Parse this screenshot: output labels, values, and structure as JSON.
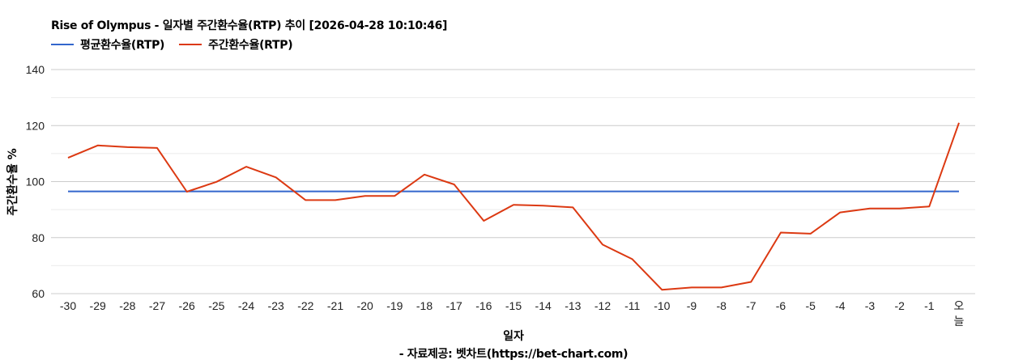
{
  "title": "Rise of Olympus - 일자별 주간환수율(RTP) 추이 [2026-04-28 10:10:46]",
  "legend": [
    {
      "label": "평균환수율(RTP)",
      "color": "#3366cc"
    },
    {
      "label": "주간환수율(RTP)",
      "color": "#dc3912"
    }
  ],
  "x_axis_title": "일자",
  "y_axis_title": "주간환수율 %",
  "source": "- 자료제공: 벳차트(https://bet-chart.com)",
  "chart_data": {
    "type": "line",
    "title": "Rise of Olympus - 일자별 주간환수율(RTP) 추이 [2026-04-28 10:10:46]",
    "xlabel": "일자",
    "ylabel": "주간환수율 %",
    "ylim": [
      60,
      140
    ],
    "y_ticks": [
      60,
      80,
      100,
      120,
      140
    ],
    "y_minor_gridlines": [
      70,
      90,
      110,
      130
    ],
    "grid": true,
    "legend_position": "top-left",
    "categories": [
      "-30",
      "-29",
      "-28",
      "-27",
      "-26",
      "-25",
      "-24",
      "-23",
      "-22",
      "-21",
      "-20",
      "-19",
      "-18",
      "-17",
      "-16",
      "-15",
      "-14",
      "-13",
      "-12",
      "-11",
      "-10",
      "-9",
      "-8",
      "-7",
      "-6",
      "-5",
      "-4",
      "-3",
      "-2",
      "-1",
      "오늘"
    ],
    "series": [
      {
        "name": "평균환수율(RTP)",
        "color": "#3366cc",
        "values": [
          96.5,
          96.5,
          96.5,
          96.5,
          96.5,
          96.5,
          96.5,
          96.5,
          96.5,
          96.5,
          96.5,
          96.5,
          96.5,
          96.5,
          96.5,
          96.5,
          96.5,
          96.5,
          96.5,
          96.5,
          96.5,
          96.5,
          96.5,
          96.5,
          96.5,
          96.5,
          96.5,
          96.5,
          96.5,
          96.5,
          96.5
        ]
      },
      {
        "name": "주간환수율(RTP)",
        "color": "#dc3912",
        "values": [
          108.5,
          112.9,
          112.3,
          112.0,
          96.4,
          99.9,
          105.3,
          101.5,
          93.4,
          93.4,
          94.9,
          94.9,
          102.5,
          99.0,
          86.0,
          91.7,
          91.4,
          90.8,
          77.5,
          72.3,
          61.4,
          62.2,
          62.2,
          64.2,
          81.8,
          81.4,
          89.0,
          90.4,
          90.4,
          91.1,
          121.0
        ]
      }
    ]
  }
}
